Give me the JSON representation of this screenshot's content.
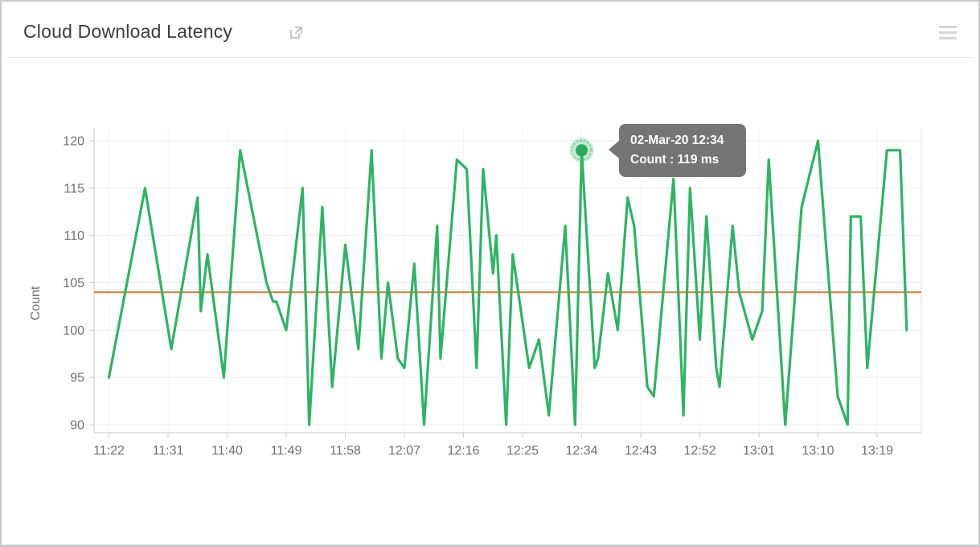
{
  "header": {
    "title": "Cloud Download Latency",
    "icons": {
      "open_in_new": "external-link",
      "menu": "hamburger"
    }
  },
  "colors": {
    "line_green": "#2db464",
    "dot_green": "#28ab5d",
    "halo_green_rgba": "rgba(45,180,100,0.28)",
    "halo_ring_rgba": "rgba(45,180,100,0.5)",
    "average_orange": "#e87828",
    "grid_h": "#ebebeb",
    "grid_v": "#f4f4f4",
    "axis": "#c9c9c9",
    "axis_right": "#dedede",
    "tick": "#cccccc",
    "label_gray": "#6f6f6f",
    "tooltip_bg": "#757575"
  },
  "tooltip": {
    "line1": "02-Mar-20 12:34",
    "line2": "Count : 119 ms"
  },
  "chart_data": {
    "type": "line",
    "title": "Cloud Download Latency",
    "ylabel": "Count",
    "unit": "ms",
    "date": "02-Mar-20",
    "start_time": "11:22",
    "y_ticks": [
      90,
      95,
      100,
      105,
      110,
      115,
      120
    ],
    "ylim": [
      88.7,
      121.4
    ],
    "x_tick_labels": [
      "11:22",
      "11:31",
      "11:40",
      "11:49",
      "11:58",
      "12:07",
      "12:16",
      "12:25",
      "12:34",
      "12:43",
      "12:52",
      "13:01",
      "13:10",
      "13:19"
    ],
    "x_tick_minutes": [
      0,
      9,
      18,
      27,
      36,
      45,
      54,
      63,
      72,
      81,
      90,
      99,
      108,
      117
    ],
    "grid": true,
    "legend": "none",
    "t_unit": "minutes_after_11:22",
    "series": [
      {
        "name": "Count (ms)",
        "points": [
          [
            0,
            95
          ],
          [
            5.5,
            115
          ],
          [
            9.5,
            98
          ],
          [
            13.5,
            114
          ],
          [
            14,
            102
          ],
          [
            15,
            108
          ],
          [
            17.5,
            95
          ],
          [
            20,
            119
          ],
          [
            24,
            105
          ],
          [
            25,
            103
          ],
          [
            25.5,
            103
          ],
          [
            27,
            100
          ],
          [
            29.5,
            115
          ],
          [
            30.5,
            90
          ],
          [
            32.5,
            113
          ],
          [
            34,
            94
          ],
          [
            36,
            109
          ],
          [
            38,
            98
          ],
          [
            40,
            119
          ],
          [
            41.5,
            97
          ],
          [
            42.5,
            105
          ],
          [
            44,
            97
          ],
          [
            45,
            96
          ],
          [
            46.5,
            107
          ],
          [
            48,
            90
          ],
          [
            50,
            111
          ],
          [
            50.5,
            97
          ],
          [
            53,
            118
          ],
          [
            54.5,
            117
          ],
          [
            56,
            96
          ],
          [
            57,
            117
          ],
          [
            58.5,
            106
          ],
          [
            59,
            110
          ],
          [
            60.5,
            90
          ],
          [
            61.5,
            108
          ],
          [
            64,
            96
          ],
          [
            65.5,
            99
          ],
          [
            67,
            91
          ],
          [
            69.5,
            111
          ],
          [
            71,
            90
          ],
          [
            72,
            119
          ],
          [
            74,
            96
          ],
          [
            74.5,
            97
          ],
          [
            76,
            106
          ],
          [
            77.5,
            100
          ],
          [
            79,
            114
          ],
          [
            80,
            111
          ],
          [
            82,
            94
          ],
          [
            83,
            93
          ],
          [
            86,
            116
          ],
          [
            87.5,
            91
          ],
          [
            88.5,
            115
          ],
          [
            90,
            99
          ],
          [
            91,
            112
          ],
          [
            92.5,
            96
          ],
          [
            93,
            94
          ],
          [
            95,
            111
          ],
          [
            96,
            104
          ],
          [
            98,
            99
          ],
          [
            99.5,
            102
          ],
          [
            100.5,
            118
          ],
          [
            103,
            90
          ],
          [
            105.5,
            113
          ],
          [
            108,
            120
          ],
          [
            111,
            93
          ],
          [
            112.5,
            90
          ],
          [
            113,
            112
          ],
          [
            114.5,
            112
          ],
          [
            115.5,
            96
          ],
          [
            118.5,
            119
          ],
          [
            120.5,
            119
          ],
          [
            121.5,
            100
          ]
        ]
      }
    ],
    "average_line": {
      "value": 104
    },
    "highlight": {
      "t": 72,
      "v": 119,
      "time_label": "02-Mar-20 12:34",
      "value_label": "Count : 119 ms"
    }
  }
}
